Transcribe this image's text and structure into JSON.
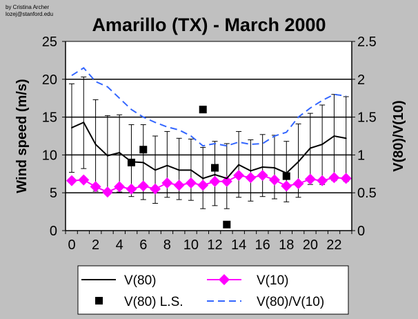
{
  "credit": {
    "line1": "by Cristina Archer",
    "line2": "lozej@stanford.edu"
  },
  "chart_data": {
    "type": "line",
    "title": "Amarillo (TX) - March 2000",
    "xlabel": "",
    "ylabel": "Wind speed (m/s)",
    "y2label": "V(80)/V(10)",
    "ylim": [
      0,
      25
    ],
    "y2lim": [
      0,
      2.5
    ],
    "yticks": [
      "0",
      "5",
      "10",
      "15",
      "20",
      "25"
    ],
    "y2ticks": [
      "0",
      "0.5",
      "1",
      "1.5",
      "2",
      "2.5"
    ],
    "xticks": [
      "0",
      "2",
      "4",
      "6",
      "8",
      "10",
      "12",
      "14",
      "16",
      "18",
      "20",
      "22"
    ],
    "x": [
      0,
      1,
      2,
      3,
      4,
      5,
      6,
      7,
      8,
      9,
      10,
      11,
      12,
      13,
      14,
      15,
      16,
      17,
      18,
      19,
      20,
      21,
      22,
      23
    ],
    "grid": "horizontal",
    "legend_position": "bottom",
    "series": [
      {
        "name": "V(80)",
        "axis": "left",
        "color": "#000000",
        "values": [
          13.6,
          14.3,
          11.4,
          9.9,
          10.3,
          9.1,
          9.0,
          8.0,
          8.6,
          8.0,
          8.0,
          6.9,
          7.4,
          6.9,
          8.7,
          7.9,
          8.4,
          8.3,
          7.6,
          9.1,
          10.9,
          11.4,
          12.5,
          12.2
        ],
        "err_upper": [
          19.4,
          20.3,
          17.3,
          15.2,
          15.3,
          14.0,
          14.0,
          12.5,
          13.1,
          12.2,
          12.1,
          11.0,
          11.8,
          11.5,
          13.1,
          12.0,
          12.7,
          12.6,
          11.8,
          14.1,
          15.5,
          16.6,
          18.0,
          17.7
        ],
        "err_lower": [
          7.7,
          8.2,
          5.2,
          5.1,
          5.1,
          4.5,
          4.1,
          3.6,
          4.4,
          4.1,
          4.0,
          2.9,
          3.3,
          2.9,
          4.4,
          3.9,
          4.5,
          4.2,
          3.8,
          4.4,
          6.1,
          6.1,
          6.6,
          6.5
        ]
      },
      {
        "name": "V(10)",
        "axis": "left",
        "color": "#ff00ff",
        "values": [
          6.6,
          6.7,
          5.8,
          5.1,
          5.8,
          5.5,
          5.9,
          5.5,
          6.3,
          6.0,
          6.3,
          6.0,
          6.5,
          6.5,
          7.3,
          7.0,
          7.3,
          6.7,
          5.9,
          6.2,
          6.8,
          6.6,
          7.0,
          6.9
        ]
      },
      {
        "name": "V(80) L.S.",
        "axis": "left",
        "color": "#000000",
        "points": [
          [
            5,
            9.0
          ],
          [
            6,
            10.7
          ],
          [
            11,
            16.0
          ],
          [
            12,
            8.3
          ],
          [
            13,
            0.8
          ],
          [
            18,
            7.2
          ]
        ]
      },
      {
        "name": "V(80)/V(10)",
        "axis": "right",
        "color": "#3366ff",
        "values": [
          2.05,
          2.15,
          1.97,
          1.9,
          1.75,
          1.6,
          1.5,
          1.43,
          1.37,
          1.33,
          1.25,
          1.12,
          1.15,
          1.12,
          1.17,
          1.14,
          1.15,
          1.25,
          1.3,
          1.5,
          1.62,
          1.72,
          1.8,
          1.78
        ]
      }
    ]
  }
}
